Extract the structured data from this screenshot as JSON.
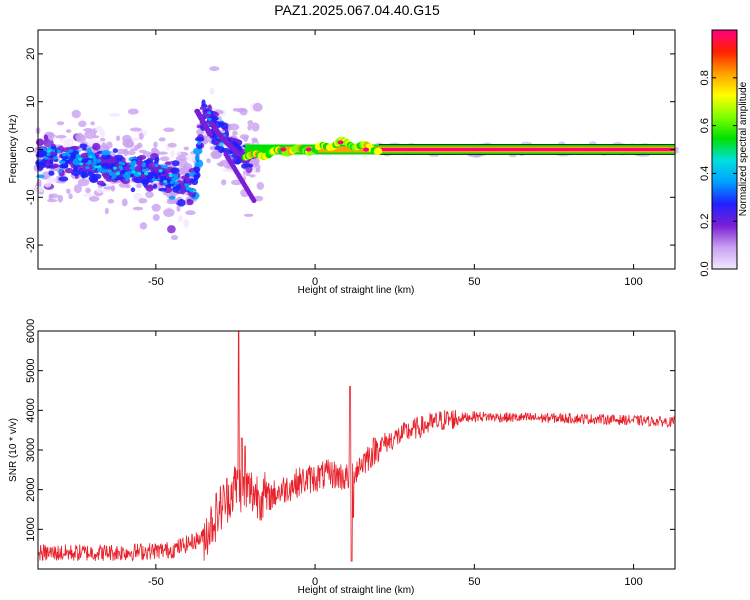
{
  "figure": {
    "title": "PAZ1.2025.067.04.40.G15"
  },
  "chart_data": [
    {
      "type": "heatmap",
      "xlabel": "Height of straight line (km)",
      "ylabel": "Frequency (Hz)",
      "xlim": [
        -87,
        113
      ],
      "ylim": [
        -25,
        25
      ],
      "x_ticks": [
        -50,
        0,
        50,
        100
      ],
      "y_ticks": [
        -20,
        -10,
        0,
        10,
        20
      ],
      "colorbar": {
        "label": "Normalized spectral amplitude",
        "range": [
          0,
          1
        ],
        "ticks": [
          "0.0",
          "0.2",
          "0.4",
          "0.6",
          "0.8"
        ],
        "colors": [
          "#f2e8ff",
          "#c9a0f0",
          "#7a1fd6",
          "#2020ff",
          "#00a0ff",
          "#00e0e0",
          "#00e000",
          "#80ff00",
          "#ffff00",
          "#ffa000",
          "#ff2000",
          "#ff0080"
        ]
      },
      "ridge": {
        "description_points": [
          [
            -87,
            -1
          ],
          [
            -70,
            -3
          ],
          [
            -50,
            -5
          ],
          [
            -38,
            -8
          ],
          [
            -35,
            8
          ],
          [
            -30,
            3
          ],
          [
            -24,
            -1
          ],
          [
            -20,
            -1.5
          ],
          [
            -10,
            -0.3
          ],
          [
            0,
            0
          ],
          [
            8,
            1.5
          ],
          [
            20,
            0
          ],
          [
            113,
            0
          ]
        ]
      }
    },
    {
      "type": "line",
      "xlabel": "Height of straight line (km)",
      "ylabel": "SNR (10 * v/v)",
      "xlim": [
        -87,
        113
      ],
      "ylim": [
        0,
        6000
      ],
      "x_ticks": [
        -50,
        0,
        50,
        100
      ],
      "y_ticks": [
        1000,
        2000,
        3000,
        4000,
        5000,
        6000
      ],
      "series": [
        {
          "color": "#e8202a",
          "trend": [
            [
              -87,
              400
            ],
            [
              -60,
              420
            ],
            [
              -45,
              480
            ],
            [
              -35,
              800
            ],
            [
              -30,
              1500
            ],
            [
              -25,
              2100
            ],
            [
              -15,
              1800
            ],
            [
              -5,
              2200
            ],
            [
              5,
              2400
            ],
            [
              10,
              2300
            ],
            [
              15,
              2700
            ],
            [
              20,
              3100
            ],
            [
              30,
              3500
            ],
            [
              40,
              3750
            ],
            [
              50,
              3850
            ],
            [
              60,
              3820
            ],
            [
              80,
              3800
            ],
            [
              100,
              3750
            ],
            [
              113,
              3700
            ]
          ],
          "spikes": [
            [
              -24,
              6000
            ],
            [
              -23,
              3300
            ],
            [
              -22,
              3100
            ],
            [
              11,
              4600
            ],
            [
              11.5,
              200
            ],
            [
              12,
              1300
            ]
          ]
        }
      ]
    }
  ]
}
